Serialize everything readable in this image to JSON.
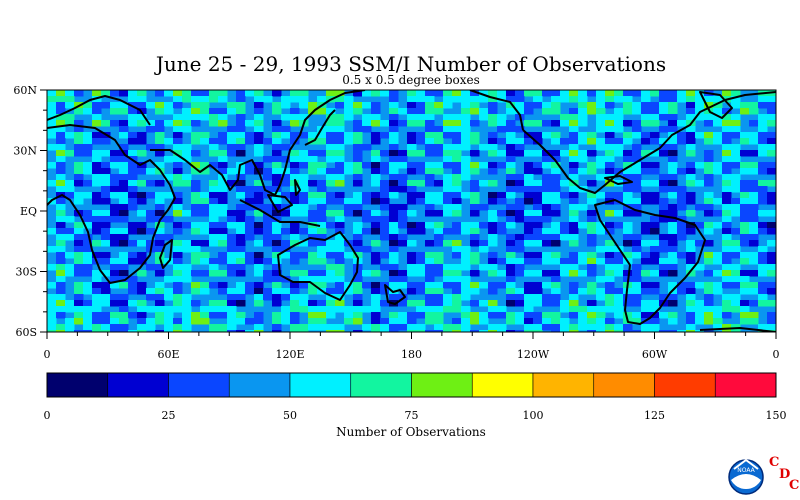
{
  "chart_data": {
    "type": "heatmap",
    "title": "June 25 - 29, 1993 SSM/I Number of Observations",
    "subtitle": "0.5 x 0.5 degree boxes",
    "x_ticks": [
      "0",
      "60E",
      "120E",
      "180",
      "120W",
      "60W",
      "0"
    ],
    "y_ticks": [
      "60N",
      "30N",
      "EQ",
      "30S",
      "60S"
    ],
    "x_range": [
      0,
      360
    ],
    "y_range": [
      -60,
      60
    ],
    "colorbar": {
      "label": "Number of Observations",
      "ticks": [
        "0",
        "25",
        "50",
        "75",
        "100",
        "125",
        "150"
      ],
      "range": [
        0,
        150
      ],
      "colors": [
        "#00006e",
        "#0000d2",
        "#0a46ff",
        "#0a96f0",
        "#00f0ff",
        "#12f5a0",
        "#6ef014",
        "#ffff00",
        "#ffb400",
        "#ff8c00",
        "#ff3c00",
        "#ff0a3c"
      ]
    }
  },
  "logo": {
    "noaa_text": "NOAA",
    "cdc_letters": [
      "C",
      "D",
      "C"
    ]
  }
}
